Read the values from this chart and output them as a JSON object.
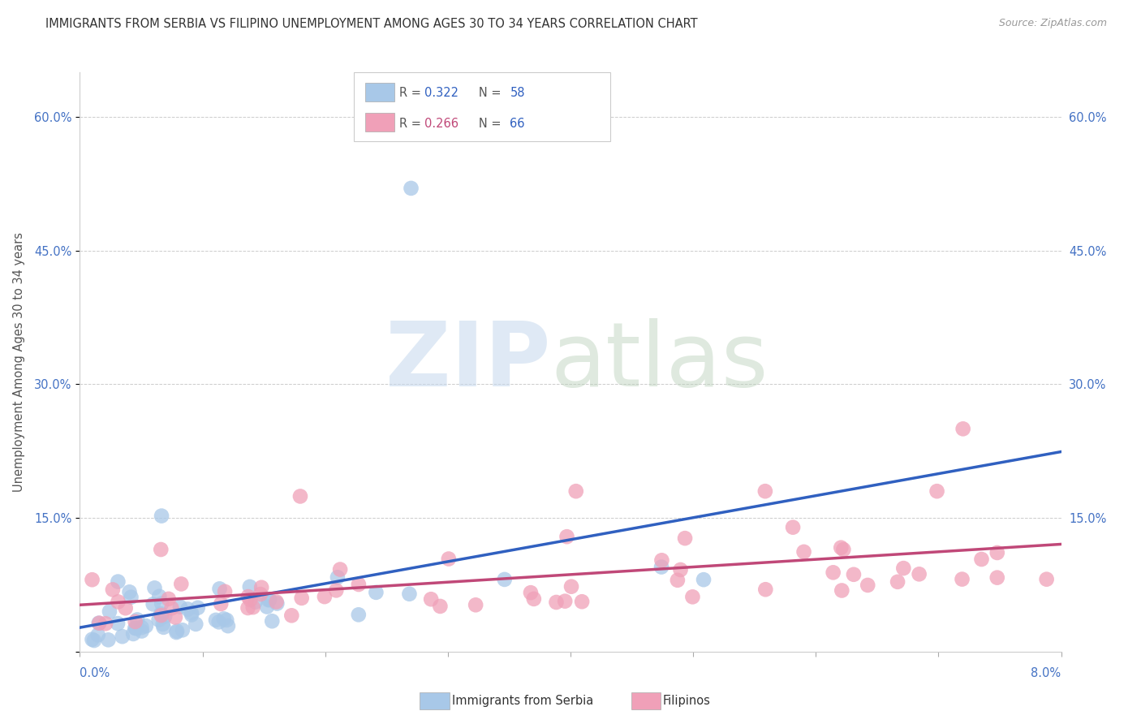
{
  "title": "IMMIGRANTS FROM SERBIA VS FILIPINO UNEMPLOYMENT AMONG AGES 30 TO 34 YEARS CORRELATION CHART",
  "source": "Source: ZipAtlas.com",
  "ylabel": "Unemployment Among Ages 30 to 34 years",
  "xmin": 0.0,
  "xmax": 0.08,
  "ymin": 0.0,
  "ymax": 0.65,
  "ytick_vals": [
    0.0,
    0.15,
    0.3,
    0.45,
    0.6
  ],
  "ytick_labels": [
    "",
    "15.0%",
    "30.0%",
    "45.0%",
    "60.0%"
  ],
  "serbia_color": "#a8c8e8",
  "serbia_line_color": "#3060c0",
  "dashed_line_color": "#b0c8d8",
  "filipino_color": "#f0a0b8",
  "filipino_line_color": "#c04878",
  "legend_r_serbia": "0.322",
  "legend_n_serbia": "58",
  "legend_r_filipino": "0.266",
  "legend_n_filipino": "66",
  "r_color": "#3060c0",
  "n_color": "#3060c0",
  "tick_color": "#4472c4",
  "grid_color": "#cccccc"
}
